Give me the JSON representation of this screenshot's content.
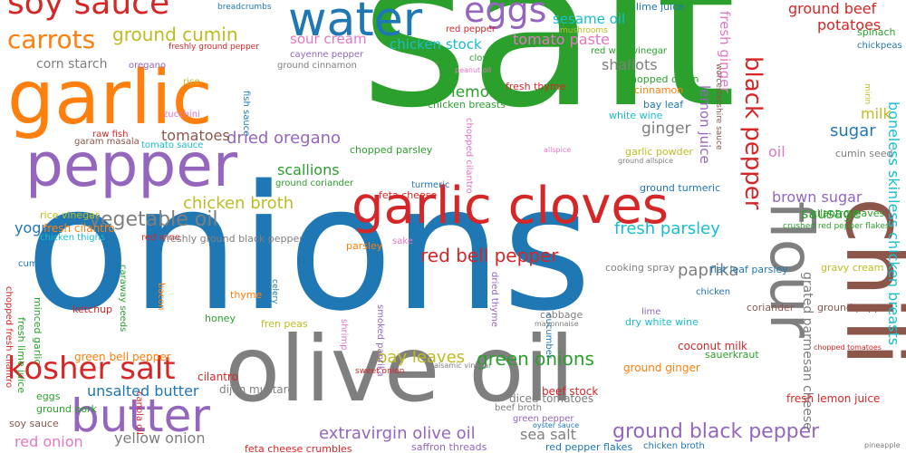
{
  "palette": {
    "blue": "#1f77b4",
    "orange": "#ff7f0e",
    "green": "#2ca02c",
    "red": "#d62728",
    "purple": "#9467bd",
    "brown": "#8c564b",
    "pink": "#e377c2",
    "gray": "#7f7f7f",
    "olive": "#bcbd22",
    "cyan": "#17becf"
  },
  "words": [
    {
      "text": "salt",
      "color": "green",
      "vertical": false
    },
    {
      "text": "onions",
      "color": "blue",
      "vertical": false
    },
    {
      "text": "olive oil",
      "color": "gray",
      "vertical": false
    },
    {
      "text": "garlic",
      "color": "orange",
      "vertical": false
    },
    {
      "text": "pepper",
      "color": "purple",
      "vertical": false
    },
    {
      "text": "chili",
      "color": "brown",
      "vertical": true
    },
    {
      "text": "flour",
      "color": "gray",
      "vertical": true
    },
    {
      "text": "garlic cloves",
      "color": "red",
      "vertical": false
    },
    {
      "text": "water",
      "color": "blue",
      "vertical": false
    },
    {
      "text": "butter",
      "color": "purple",
      "vertical": false
    },
    {
      "text": "kosher salt",
      "color": "red",
      "vertical": false
    },
    {
      "text": "soy sauce",
      "color": "red",
      "vertical": false
    },
    {
      "text": "eggs",
      "color": "purple",
      "vertical": false
    },
    {
      "text": "carrots",
      "color": "orange",
      "vertical": false
    },
    {
      "text": "black pepper",
      "color": "red",
      "vertical": true
    },
    {
      "text": "ground black pepper",
      "color": "purple",
      "vertical": false
    },
    {
      "text": "vegetable oil",
      "color": "gray",
      "vertical": false
    },
    {
      "text": "red bell pepper",
      "color": "red",
      "vertical": false
    },
    {
      "text": "ground cumin",
      "color": "olive",
      "vertical": false
    },
    {
      "text": "boneless skinless chicken breasts",
      "color": "cyan",
      "vertical": true
    },
    {
      "text": "green onions",
      "color": "green",
      "vertical": false
    },
    {
      "text": "fresh parsley",
      "color": "cyan",
      "vertical": false
    },
    {
      "text": "paprika",
      "color": "gray",
      "vertical": false
    },
    {
      "text": "extravirgin olive oil",
      "color": "purple",
      "vertical": false
    },
    {
      "text": "dried oregano",
      "color": "purple",
      "vertical": false
    },
    {
      "text": "unsalted butter",
      "color": "blue",
      "vertical": false
    },
    {
      "text": "bay leaves",
      "color": "olive",
      "vertical": false
    },
    {
      "text": "chicken broth",
      "color": "olive",
      "vertical": false
    },
    {
      "text": "yellow onion",
      "color": "gray",
      "vertical": false
    },
    {
      "text": "sugar",
      "color": "blue",
      "vertical": false
    },
    {
      "text": "ground beef",
      "color": "red",
      "vertical": false
    },
    {
      "text": "potatoes",
      "color": "red",
      "vertical": false
    },
    {
      "text": "sesame oil",
      "color": "cyan",
      "vertical": false
    },
    {
      "text": "tomato paste",
      "color": "pink",
      "vertical": false
    },
    {
      "text": "sour cream",
      "color": "pink",
      "vertical": false
    },
    {
      "text": "chicken stock",
      "color": "cyan",
      "vertical": false
    },
    {
      "text": "tomatoes",
      "color": "brown",
      "vertical": false
    },
    {
      "text": "shallots",
      "color": "gray",
      "vertical": false
    },
    {
      "text": "lemon",
      "color": "green",
      "vertical": false
    },
    {
      "text": "ginger",
      "color": "gray",
      "vertical": false
    },
    {
      "text": "lemon juice",
      "color": "purple",
      "vertical": true
    },
    {
      "text": "fresh ginger",
      "color": "pink",
      "vertical": true
    },
    {
      "text": "milk",
      "color": "olive",
      "vertical": false
    },
    {
      "text": "oil",
      "color": "pink",
      "vertical": false
    },
    {
      "text": "brown sugar",
      "color": "purple",
      "vertical": false
    },
    {
      "text": "sausage",
      "color": "green",
      "vertical": false
    },
    {
      "text": "scallions",
      "color": "green",
      "vertical": false
    },
    {
      "text": "yogurt",
      "color": "blue",
      "vertical": false
    },
    {
      "text": "corn starch",
      "color": "gray",
      "vertical": false
    },
    {
      "text": "red onion",
      "color": "pink",
      "vertical": false
    },
    {
      "text": "sea salt",
      "color": "gray",
      "vertical": false
    },
    {
      "text": "grated parmesan cheese",
      "color": "gray",
      "vertical": true
    },
    {
      "text": "ground ginger",
      "color": "orange",
      "vertical": false
    },
    {
      "text": "fresh lemon juice",
      "color": "red",
      "vertical": false
    },
    {
      "text": "beef stock",
      "color": "red",
      "vertical": false
    },
    {
      "text": "coconut milk",
      "color": "red",
      "vertical": false
    },
    {
      "text": "green bell pepper",
      "color": "orange",
      "vertical": false
    },
    {
      "text": "dijon mustard",
      "color": "gray",
      "vertical": false
    },
    {
      "text": "cilantro",
      "color": "red",
      "vertical": false
    },
    {
      "text": "diced tomatoes",
      "color": "gray",
      "vertical": false
    },
    {
      "text": "cooking spray",
      "color": "gray",
      "vertical": false
    },
    {
      "text": "flat leaf parsley",
      "color": "blue",
      "vertical": false
    },
    {
      "text": "dry white wine",
      "color": "cyan",
      "vertical": false
    },
    {
      "text": "ground pepper",
      "color": "brown",
      "vertical": false
    },
    {
      "text": "coriander",
      "color": "brown",
      "vertical": false
    },
    {
      "text": "cumin seed",
      "color": "gray",
      "vertical": false
    },
    {
      "text": "cilantro leaves",
      "color": "green",
      "vertical": false
    },
    {
      "text": "lime juice",
      "color": "blue",
      "vertical": false
    },
    {
      "text": "fresh thyme",
      "color": "red",
      "vertical": false
    },
    {
      "text": "chopped onion",
      "color": "green",
      "vertical": false
    },
    {
      "text": "chicken breasts",
      "color": "green",
      "vertical": false
    },
    {
      "text": "bay leaf",
      "color": "blue",
      "vertical": false
    },
    {
      "text": "white wine",
      "color": "cyan",
      "vertical": false
    },
    {
      "text": "cinnamon",
      "color": "orange",
      "vertical": false
    },
    {
      "text": "garlic powder",
      "color": "olive",
      "vertical": false
    },
    {
      "text": "ground turmeric",
      "color": "blue",
      "vertical": false
    },
    {
      "text": "feta cheese",
      "color": "red",
      "vertical": false
    },
    {
      "text": "turmeric",
      "color": "blue",
      "vertical": false
    },
    {
      "text": "ground coriander",
      "color": "green",
      "vertical": false
    },
    {
      "text": "fresh cilantro",
      "color": "orange",
      "vertical": false
    },
    {
      "text": "rice vinegar",
      "color": "olive",
      "vertical": false
    },
    {
      "text": "chicken thighs",
      "color": "cyan",
      "vertical": false
    },
    {
      "text": "red wine",
      "color": "red",
      "vertical": false
    },
    {
      "text": "freshly ground black pepper",
      "color": "gray",
      "vertical": false
    },
    {
      "text": "parsley",
      "color": "orange",
      "vertical": false
    },
    {
      "text": "sake",
      "color": "pink",
      "vertical": false
    },
    {
      "text": "lime",
      "color": "purple",
      "vertical": false
    },
    {
      "text": "cabbage",
      "color": "gray",
      "vertical": false
    },
    {
      "text": "chicken",
      "color": "blue",
      "vertical": false
    },
    {
      "text": "thyme",
      "color": "orange",
      "vertical": false
    },
    {
      "text": "honey",
      "color": "green",
      "vertical": false
    },
    {
      "text": "ketchup",
      "color": "red",
      "vertical": false
    },
    {
      "text": "caraway seeds",
      "color": "green",
      "vertical": true
    },
    {
      "text": "bacon",
      "color": "orange",
      "vertical": true
    },
    {
      "text": "celery",
      "color": "blue",
      "vertical": true
    },
    {
      "text": "shrimp",
      "color": "pink",
      "vertical": true
    },
    {
      "text": "smoked paprika",
      "color": "purple",
      "vertical": true
    },
    {
      "text": "dried thyme",
      "color": "purple",
      "vertical": true
    },
    {
      "text": "cucumber",
      "color": "blue",
      "vertical": true
    },
    {
      "text": "fren peas",
      "color": "olive",
      "vertical": false
    },
    {
      "text": "sauerkraut",
      "color": "green",
      "vertical": false
    },
    {
      "text": "gravy cream",
      "color": "olive",
      "vertical": false
    },
    {
      "text": "crushed red pepper flakes",
      "color": "green",
      "vertical": false
    },
    {
      "text": "red pepper flakes",
      "color": "blue",
      "vertical": false
    },
    {
      "text": "saffron threads",
      "color": "purple",
      "vertical": false
    },
    {
      "text": "beef broth",
      "color": "gray",
      "vertical": false
    },
    {
      "text": "green pepper",
      "color": "purple",
      "vertical": false
    },
    {
      "text": "canola oil",
      "color": "red",
      "vertical": true
    },
    {
      "text": "ground pork",
      "color": "green",
      "vertical": false
    },
    {
      "text": "soy sauce",
      "color": "brown",
      "vertical": false
    },
    {
      "text": "feta cheese crumbles",
      "color": "red",
      "vertical": false
    },
    {
      "text": "chicken broth",
      "color": "blue",
      "vertical": false
    },
    {
      "text": "eggs",
      "color": "green",
      "vertical": false
    },
    {
      "text": "cumin",
      "color": "blue",
      "vertical": false
    },
    {
      "text": "minced garlic",
      "color": "green",
      "vertical": true
    },
    {
      "text": "fresh lime juice",
      "color": "green",
      "vertical": true
    },
    {
      "text": "chopped fresh cilantro",
      "color": "red",
      "vertical": true
    },
    {
      "text": "ground cinnamon",
      "color": "gray",
      "vertical": false
    },
    {
      "text": "cayenne pepper",
      "color": "purple",
      "vertical": false
    },
    {
      "text": "red pepper",
      "color": "red",
      "vertical": false
    },
    {
      "text": "clove",
      "color": "green",
      "vertical": false
    },
    {
      "text": "red wine vinegar",
      "color": "green",
      "vertical": false
    },
    {
      "text": "spinach",
      "color": "green",
      "vertical": false
    },
    {
      "text": "chickpeas",
      "color": "blue",
      "vertical": false
    },
    {
      "text": "oregano",
      "color": "purple",
      "vertical": false
    },
    {
      "text": "rice",
      "color": "olive",
      "vertical": false
    },
    {
      "text": "zucchini",
      "color": "pink",
      "vertical": false
    },
    {
      "text": "garam masala",
      "color": "brown",
      "vertical": false
    },
    {
      "text": "tomato sauce",
      "color": "cyan",
      "vertical": false
    },
    {
      "text": "raw fish",
      "color": "red",
      "vertical": false
    },
    {
      "text": "fish sauce",
      "color": "blue",
      "vertical": true
    },
    {
      "text": "chopped parsley",
      "color": "green",
      "vertical": false
    },
    {
      "text": "chopped cilantro",
      "color": "pink",
      "vertical": true
    },
    {
      "text": "worcestershire sauce",
      "color": "brown",
      "vertical": true
    },
    {
      "text": "mirin",
      "color": "olive",
      "vertical": true
    },
    {
      "text": "breadcrumbs",
      "color": "blue",
      "vertical": false
    },
    {
      "text": "freshly ground pepper",
      "color": "red",
      "vertical": false
    },
    {
      "text": "mushrooms",
      "color": "olive",
      "vertical": false
    },
    {
      "text": "peanut oil",
      "color": "pink",
      "vertical": false
    },
    {
      "text": "allspice",
      "color": "pink",
      "vertical": false
    },
    {
      "text": "ground allspice",
      "color": "gray",
      "vertical": false
    },
    {
      "text": "sweet onion",
      "color": "red",
      "vertical": false
    },
    {
      "text": "balsamic vinegar",
      "color": "gray",
      "vertical": false
    },
    {
      "text": "oyster sauce",
      "color": "blue",
      "vertical": false
    },
    {
      "text": "mayonnaise",
      "color": "gray",
      "vertical": false
    },
    {
      "text": "pineapple",
      "color": "gray",
      "vertical": false
    },
    {
      "text": "chopped tomatoes",
      "color": "red",
      "vertical": false
    },
    {
      "text": "cinnamon sticks",
      "color": "cyan",
      "vertical": false
    }
  ]
}
